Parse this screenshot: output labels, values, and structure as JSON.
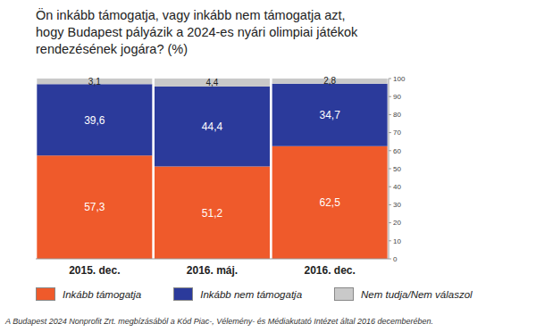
{
  "chart_data": {
    "type": "bar",
    "title": "Ön inkább támogatja, vagy inkább nem támogatja azt,\nhogy Budapest pályázik a 2024-es nyári olimpiai játékok\nrendezésének jogára? (%)",
    "source": "A Budapest 2024 Nonprofit Zrt. megbízásából a Kód Piac-, Vélemény- és Médiakutató Intézet által 2016 decemberében.",
    "categories": [
      "2015. dec.",
      "2016. máj.",
      "2016. dec."
    ],
    "series": [
      {
        "name": "Inkább támogatja",
        "color": "#ef5a2b",
        "values": [
          57.3,
          51.2,
          62.5
        ],
        "value_labels": [
          "57,3",
          "51,2",
          "62,5"
        ]
      },
      {
        "name": "Inkább nem támogatja",
        "color": "#2b3a9b",
        "values": [
          39.6,
          44.4,
          34.7
        ],
        "value_labels": [
          "39,6",
          "44,4",
          "34,7"
        ]
      },
      {
        "name": "Nem tudja/Nem válaszol",
        "color": "#c9c9c9",
        "values": [
          3.1,
          4.4,
          2.8
        ],
        "value_labels": [
          "3,1",
          "4,4",
          "2,8"
        ]
      }
    ],
    "ylim": [
      0,
      100
    ],
    "yticks": [
      0,
      10,
      20,
      30,
      40,
      50,
      60,
      70,
      80,
      90,
      100
    ],
    "stacked": true,
    "data_labels": true,
    "grid": false,
    "legend": "bottom"
  }
}
